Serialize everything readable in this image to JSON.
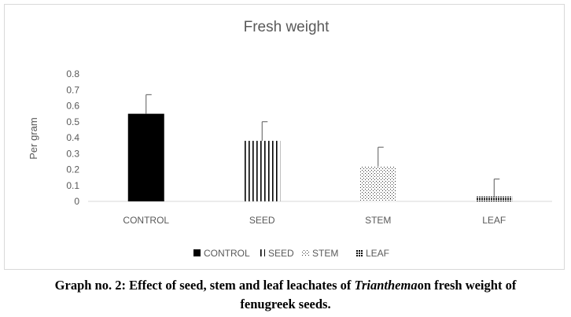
{
  "chart_data": {
    "type": "bar",
    "title": "Fresh weight",
    "xlabel": "",
    "ylabel": "Per gram",
    "categories": [
      "CONTROL",
      "SEED",
      "STEM",
      "LEAF"
    ],
    "values": [
      0.55,
      0.38,
      0.22,
      0.03
    ],
    "error_bars": [
      0.12,
      0.12,
      0.12,
      0.11
    ],
    "ylim": [
      0,
      0.8
    ],
    "yticks": [
      "0",
      "0.1",
      "0.2",
      "0.3",
      "0.4",
      "0.5",
      "0.6",
      "0.7",
      "0.8"
    ],
    "grid": false,
    "legend": {
      "position": "bottom",
      "entries": [
        {
          "label": "CONTROL",
          "pattern": "solid"
        },
        {
          "label": "SEED",
          "pattern": "vertical-lines"
        },
        {
          "label": "STEM",
          "pattern": "dots"
        },
        {
          "label": "LEAF",
          "pattern": "checker"
        }
      ]
    }
  },
  "caption": {
    "prefix": "Graph no. 2: Effect of seed, stem and leaf leachates of ",
    "species": "Trianthema",
    "suffix": "on fresh weight of",
    "line2": "fenugreek seeds."
  },
  "colors": {
    "bar": "#000000",
    "axis": "#d9d9d9",
    "text": "#595959",
    "error": "#595959"
  }
}
